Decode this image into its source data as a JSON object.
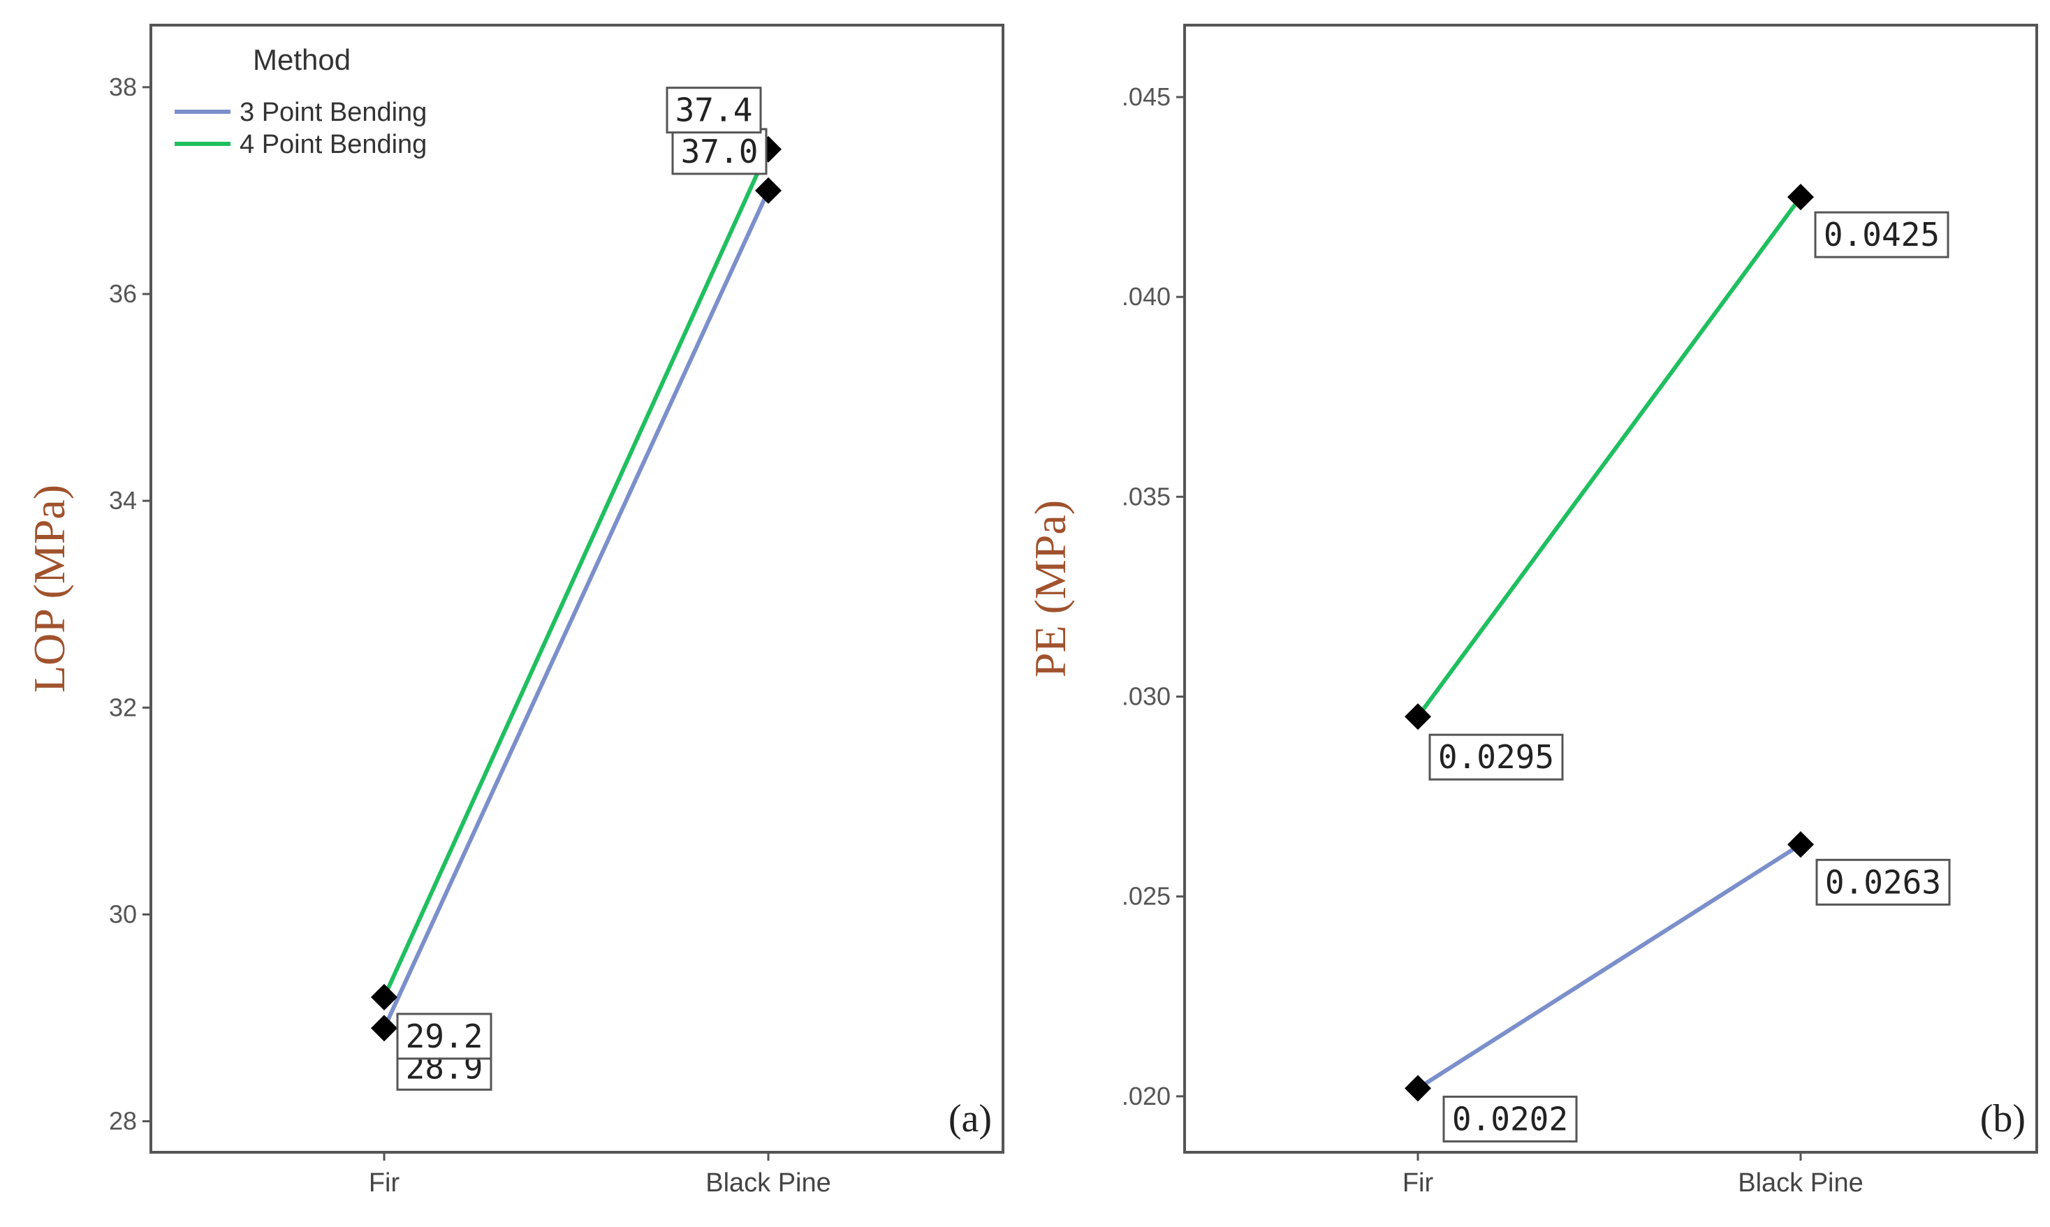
{
  "legend": {
    "title": "Method",
    "entries": [
      {
        "label": "3 Point Bending",
        "color": "#7b8fcb"
      },
      {
        "label": "4 Point Bending",
        "color": "#1fbf5f"
      }
    ]
  },
  "chart_data": [
    {
      "type": "line",
      "panel_tag": "(a)",
      "ylabel": "LOP (MPa)",
      "xlabel": "",
      "categories": [
        "Fir",
        "Black Pine"
      ],
      "ylim": [
        27.7,
        38.6
      ],
      "yticks": [
        28,
        30,
        32,
        34,
        36,
        38
      ],
      "yticklabels": [
        "28",
        "30",
        "32",
        "34",
        "36",
        "38"
      ],
      "grid": false,
      "legend_position": "top-left",
      "series": [
        {
          "name": "3 Point Bending",
          "color": "#7b8fcb",
          "values": [
            28.9,
            37.0
          ],
          "labels": [
            "28.9",
            "37.0"
          ]
        },
        {
          "name": "4 Point Bending",
          "color": "#1fbf5f",
          "values": [
            29.2,
            37.4
          ],
          "labels": [
            "29.2",
            "37.4"
          ]
        }
      ]
    },
    {
      "type": "line",
      "panel_tag": "(b)",
      "ylabel": "PE (MPa)",
      "xlabel": "",
      "categories": [
        "Fir",
        "Black Pine"
      ],
      "ylim": [
        0.0186,
        0.0468
      ],
      "yticks": [
        0.02,
        0.025,
        0.03,
        0.035,
        0.04,
        0.045
      ],
      "yticklabels": [
        ".020",
        ".025",
        ".030",
        ".035",
        ".040",
        ".045"
      ],
      "grid": false,
      "series": [
        {
          "name": "3 Point Bending",
          "color": "#7b8fcb",
          "values": [
            0.0202,
            0.0263
          ],
          "labels": [
            "0.0202",
            "0.0263"
          ]
        },
        {
          "name": "4 Point Bending",
          "color": "#1fbf5f",
          "values": [
            0.0295,
            0.0425
          ],
          "labels": [
            "0.0295",
            "0.0425"
          ]
        }
      ]
    }
  ]
}
